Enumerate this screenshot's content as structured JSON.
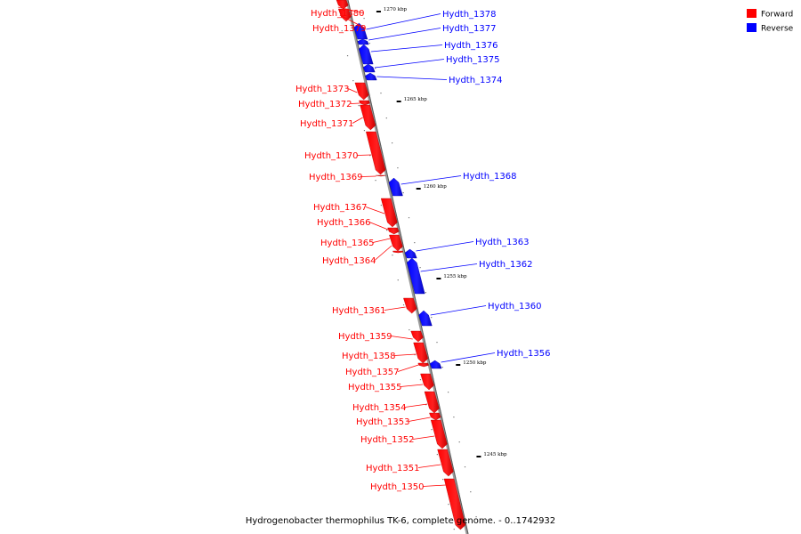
{
  "legend": {
    "items": [
      {
        "label": "Forward",
        "color": "#ff0000"
      },
      {
        "label": "Reverse",
        "color": "#0000ff"
      }
    ]
  },
  "caption": "Hydrogenobacter thermophilus TK-6, complete genome. - 0..1742932",
  "colors": {
    "forward": "#ff0000",
    "reverse": "#0000ff",
    "axis": "#888888"
  },
  "ticks": [
    "1270 kbp",
    "1265 kbp",
    "1260 kbp",
    "1255 kbp",
    "1250 kbp",
    "1245 kbp"
  ],
  "genes": [
    {
      "name": "Hydth_1380",
      "strand": "forward"
    },
    {
      "name": "Hydth_1379",
      "strand": "forward"
    },
    {
      "name": "Hydth_1378",
      "strand": "reverse"
    },
    {
      "name": "Hydth_1377",
      "strand": "reverse"
    },
    {
      "name": "Hydth_1376",
      "strand": "reverse"
    },
    {
      "name": "Hydth_1375",
      "strand": "reverse"
    },
    {
      "name": "Hydth_1374",
      "strand": "reverse"
    },
    {
      "name": "Hydth_1373",
      "strand": "forward"
    },
    {
      "name": "Hydth_1372",
      "strand": "forward"
    },
    {
      "name": "Hydth_1371",
      "strand": "forward"
    },
    {
      "name": "Hydth_1370",
      "strand": "forward"
    },
    {
      "name": "Hydth_1369",
      "strand": "forward"
    },
    {
      "name": "Hydth_1368",
      "strand": "reverse"
    },
    {
      "name": "Hydth_1367",
      "strand": "forward"
    },
    {
      "name": "Hydth_1366",
      "strand": "forward"
    },
    {
      "name": "Hydth_1365",
      "strand": "forward"
    },
    {
      "name": "Hydth_1364",
      "strand": "forward"
    },
    {
      "name": "Hydth_1363",
      "strand": "reverse"
    },
    {
      "name": "Hydth_1362",
      "strand": "reverse"
    },
    {
      "name": "Hydth_1361",
      "strand": "forward"
    },
    {
      "name": "Hydth_1360",
      "strand": "reverse"
    },
    {
      "name": "Hydth_1359",
      "strand": "forward"
    },
    {
      "name": "Hydth_1358",
      "strand": "forward"
    },
    {
      "name": "Hydth_1357",
      "strand": "forward"
    },
    {
      "name": "Hydth_1356",
      "strand": "reverse"
    },
    {
      "name": "Hydth_1355",
      "strand": "forward"
    },
    {
      "name": "Hydth_1354",
      "strand": "forward"
    },
    {
      "name": "Hydth_1353",
      "strand": "forward"
    },
    {
      "name": "Hydth_1352",
      "strand": "forward"
    },
    {
      "name": "Hydth_1351",
      "strand": "forward"
    },
    {
      "name": "Hydth_1350",
      "strand": "forward"
    }
  ]
}
